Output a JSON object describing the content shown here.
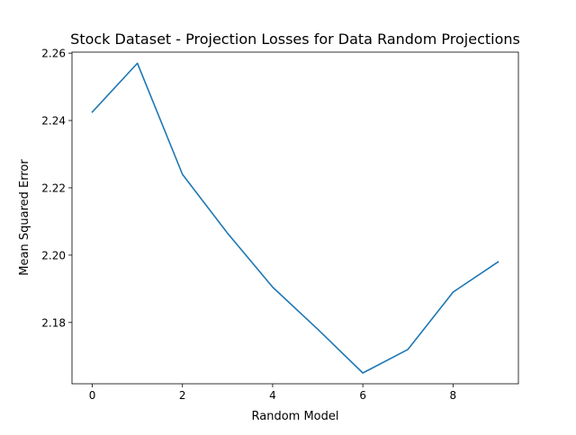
{
  "chart_data": {
    "type": "line",
    "title": "Stock Dataset - Projection Losses for Data Random Projections",
    "xlabel": "Random Model",
    "ylabel": "Mean Squared Error",
    "x": [
      0,
      1,
      2,
      3,
      4,
      5,
      6,
      7,
      8,
      9
    ],
    "series": [
      {
        "values": [
          2.2425,
          2.257,
          2.224,
          2.2065,
          2.1905,
          2.178,
          2.165,
          2.172,
          2.189,
          2.198
        ]
      }
    ],
    "xlim": [
      -0.45,
      9.45
    ],
    "ylim": [
      2.1618,
      2.2603
    ],
    "xticks": [
      0,
      2,
      4,
      6,
      8
    ],
    "yticks": [
      2.18,
      2.2,
      2.22,
      2.24,
      2.26
    ],
    "ytick_labels": [
      "2.18",
      "2.20",
      "2.22",
      "2.24",
      "2.26"
    ],
    "line_color": "#1f77b4",
    "grid": false,
    "legend": "none"
  }
}
